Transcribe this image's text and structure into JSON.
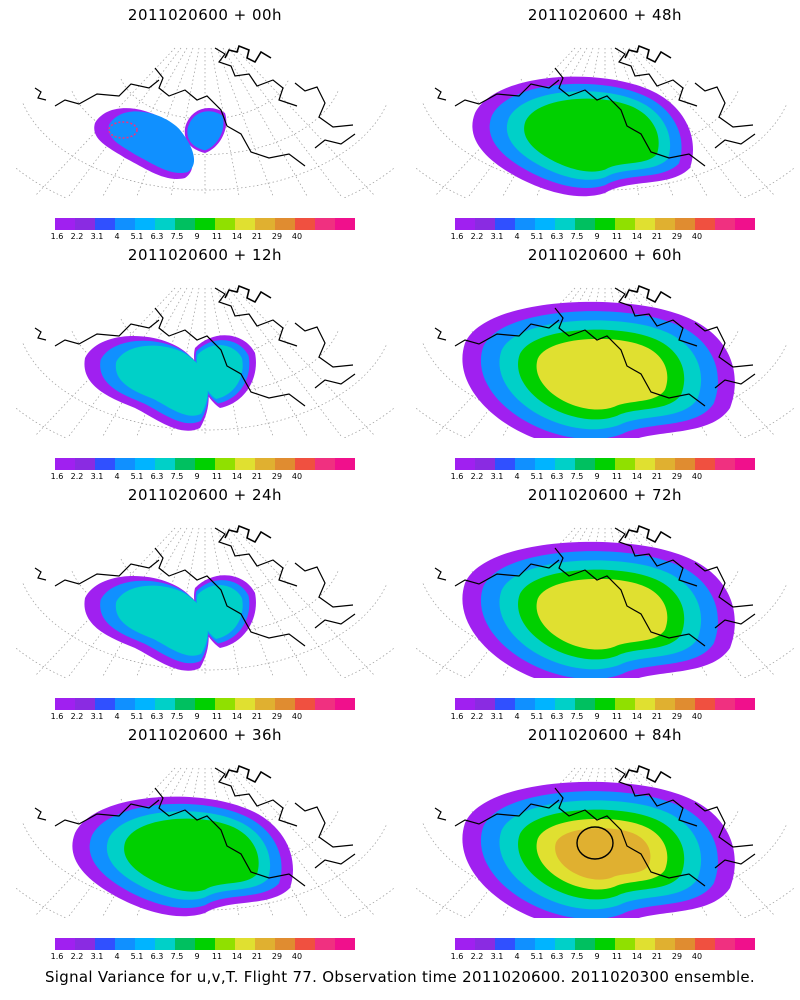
{
  "panels": [
    {
      "title": "2011020600 + 00h",
      "level": 0,
      "extent": 0
    },
    {
      "title": "2011020600 + 48h",
      "level": 2,
      "extent": 2
    },
    {
      "title": "2011020600 + 12h",
      "level": 1,
      "extent": 1
    },
    {
      "title": "2011020600 + 60h",
      "level": 3,
      "extent": 3
    },
    {
      "title": "2011020600 + 24h",
      "level": 1,
      "extent": 1
    },
    {
      "title": "2011020600 + 72h",
      "level": 3,
      "extent": 3
    },
    {
      "title": "2011020600 + 36h",
      "level": 2,
      "extent": 2
    },
    {
      "title": "2011020600 + 84h",
      "level": 4,
      "extent": 3
    }
  ],
  "colorbar": {
    "labels": [
      "1.6",
      "2.2",
      "3.1",
      "4",
      "5.1",
      "6.3",
      "7.5",
      "9",
      "11",
      "14",
      "21",
      "29",
      "40"
    ],
    "colors": [
      "#a020f0",
      "#8a2be2",
      "#3050ff",
      "#1090ff",
      "#00b4ff",
      "#00d0c8",
      "#00c060",
      "#00d000",
      "#90e000",
      "#e0e030",
      "#e0b030",
      "#e08c30",
      "#f05040",
      "#f03080",
      "#f0108c"
    ]
  },
  "footer": "Signal Variance for u,v,T. Flight 77. Observation time 2011020600. 2011020300 ensemble."
}
